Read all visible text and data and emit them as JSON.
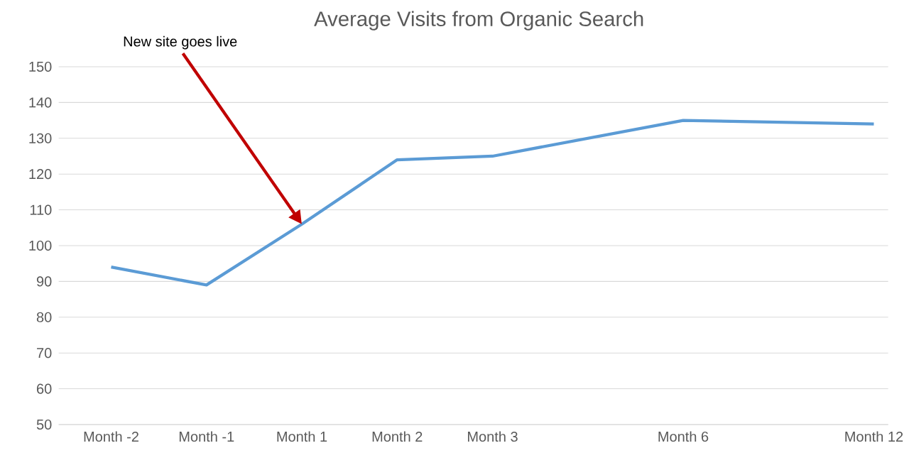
{
  "chart_data": {
    "type": "line",
    "title": "Average Visits from Organic Search",
    "categories": [
      "Month -2",
      "Month -1",
      "Month 1",
      "Month 2",
      "Month 3",
      null,
      "Month 6",
      null,
      "Month 12"
    ],
    "series": [
      {
        "color": "#5b9bd5",
        "values": [
          94,
          89,
          106,
          124,
          125,
          null,
          135,
          null,
          134
        ]
      }
    ],
    "ylim": [
      50,
      150
    ],
    "yticks": [
      50,
      60,
      70,
      80,
      90,
      100,
      110,
      120,
      130,
      140,
      150
    ],
    "grid": "y",
    "marker": "none",
    "line_style": "solid",
    "annotations": [
      {
        "text": "New site goes live",
        "x": "Month 1",
        "y": 106
      }
    ]
  }
}
